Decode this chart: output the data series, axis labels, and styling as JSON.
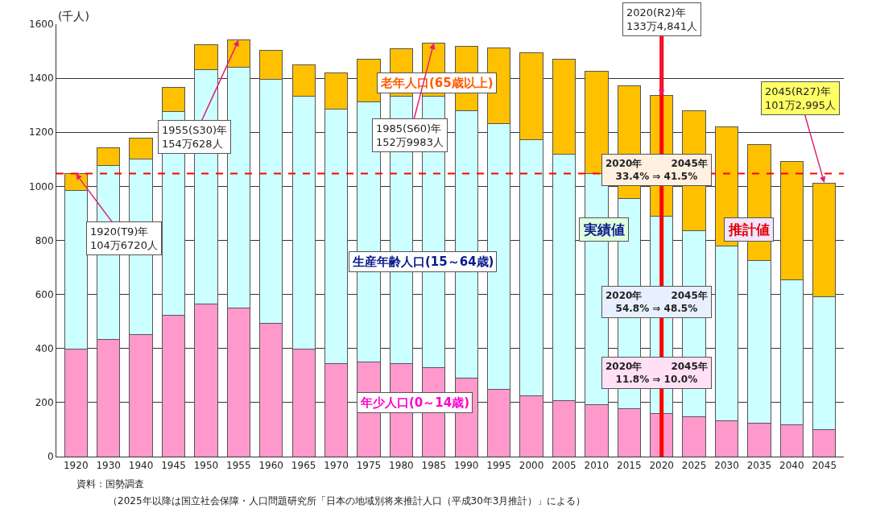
{
  "chart_data": {
    "type": "bar",
    "stacked": true,
    "ylabel": "(千人)",
    "categories": [
      "1920",
      "1930",
      "1940",
      "1945",
      "1950",
      "1955",
      "1960",
      "1965",
      "1970",
      "1975",
      "1980",
      "1985",
      "1990",
      "1995",
      "2000",
      "2005",
      "2010",
      "2015",
      "2020",
      "2025",
      "2030",
      "2035",
      "2040",
      "2045"
    ],
    "series": [
      {
        "name": "年少人口(0～14歳)",
        "color": "#ff99cc",
        "values": [
          398,
          435,
          451,
          522,
          565,
          550,
          494,
          398,
          343,
          349,
          343,
          330,
          290,
          250,
          225,
          207,
          191,
          176,
          158,
          148,
          133,
          124,
          117,
          101
        ]
      },
      {
        "name": "生産年齢人口(15～64歳)",
        "color": "#ccffff",
        "values": [
          587,
          643,
          651,
          756,
          868,
          892,
          902,
          936,
          944,
          963,
          991,
          1004,
          991,
          982,
          948,
          911,
          856,
          778,
          732,
          687,
          647,
          601,
          538,
          491
        ]
      },
      {
        "name": "老年人口(65歳以上)",
        "color": "#ffc000",
        "values": [
          62,
          64,
          77,
          87,
          92,
          99,
          108,
          117,
          133,
          158,
          176,
          196,
          238,
          281,
          321,
          352,
          379,
          417,
          445,
          446,
          440,
          430,
          438,
          421
        ]
      }
    ],
    "ylim": [
      0,
      1600
    ],
    "yticks": [
      0,
      200,
      400,
      600,
      800,
      1000,
      1200,
      1400,
      1600
    ],
    "grid": "y",
    "legend": false,
    "ref_lines": [
      {
        "axis": "y",
        "value": 1047,
        "color": "#ff0000",
        "line_style": "dashed"
      },
      {
        "axis": "x",
        "value": "2020",
        "color": "#ff0000",
        "line_style": "solid"
      }
    ],
    "annotations": [
      {
        "text": "1920(T9)年\n104万6720人",
        "x": "1920",
        "y": 1047
      },
      {
        "text": "1955(S30)年\n154万628人",
        "x": "1955",
        "y": 1541
      },
      {
        "text": "1985(S60)年\n152万9983人",
        "x": "1985",
        "y": 1530
      },
      {
        "text": "2020(R2)年\n133万4,841人",
        "x": "2020",
        "y": 1335
      },
      {
        "text": "2045(R27)年\n101万2,995人",
        "x": "2045",
        "y": 1013
      },
      "2020年　　　2045年\n33.4% ⇒ 41.5%",
      "2020年　　　2045年\n54.8% ⇒ 48.5%",
      "2020年　　　2045年\n11.8% ⇒ 10.0%",
      "実績値",
      "推計値",
      "資料：国勢調査",
      "（2025年以降は国立社会保障・人口問題研究所「日本の地域別将来推計人口（平成30年3月推計）」による）"
    ]
  }
}
